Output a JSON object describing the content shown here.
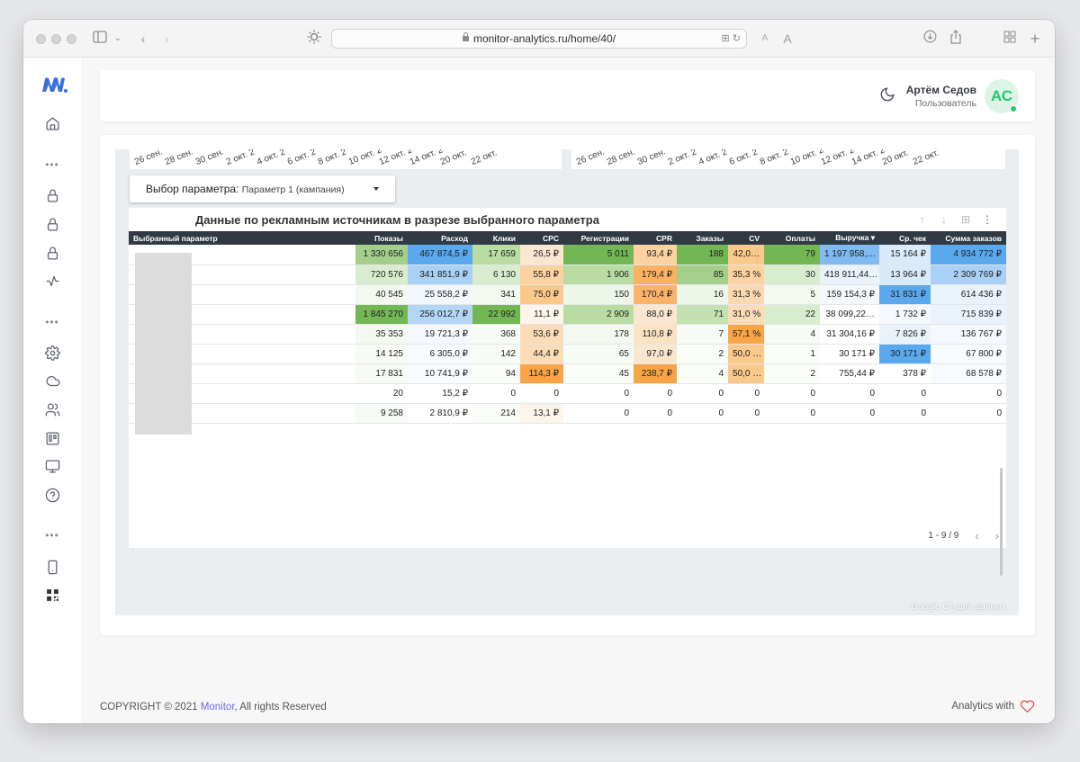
{
  "browser": {
    "url": "monitor-analytics.ru/home/40/"
  },
  "header": {
    "user_name": "Артём Седов",
    "user_role": "Пользователь",
    "avatar_initials": "АС"
  },
  "report": {
    "date_labels": [
      "26 сен.",
      "28 сен.",
      "30 сен.",
      "2 окт. 2",
      "4 окт. 2",
      "6 окт. 2",
      "8 окт. 2",
      "10 окт. 2",
      "12 окт. 2",
      "14 окт. 2",
      "20 окт.",
      "22 окт."
    ],
    "param_label": "Выбор параметра:",
    "param_value": "Параметр 1 (кампания)",
    "table_title": "Данные по рекламным источникам в разрезе выбранного параметра",
    "columns": [
      "Выбранный параметр",
      "Показы",
      "Расход",
      "Клики",
      "CPC",
      "Регистрации",
      "CPR",
      "Заказы",
      "CV",
      "Оплаты",
      "Выручка ▾",
      "Ср. чек",
      "Сумма заказов"
    ],
    "rows": [
      [
        "",
        "1 330 656",
        "467 874,5 ₽",
        "17 659",
        "26,5 ₽",
        "5 011",
        "93,4 ₽",
        "188",
        "42,0…",
        "79",
        "1 197 958,…",
        "15 164 ₽",
        "4 934 772 ₽"
      ],
      [
        "",
        "720 576",
        "341 851,9 ₽",
        "6 130",
        "55,8 ₽",
        "1 906",
        "179,4 ₽",
        "85",
        "35,3 %",
        "30",
        "418 911,44…",
        "13 964 ₽",
        "2 309 769 ₽"
      ],
      [
        "",
        "40 545",
        "25 558,2 ₽",
        "341",
        "75,0 ₽",
        "150",
        "170,4 ₽",
        "16",
        "31,3 %",
        "5",
        "159 154,3 ₽",
        "31 831 ₽",
        "614 436 ₽"
      ],
      [
        "",
        "1 845 270",
        "256 012,7 ₽",
        "22 992",
        "11,1 ₽",
        "2 909",
        "88,0 ₽",
        "71",
        "31,0 %",
        "22",
        "38 099,22…",
        "1 732 ₽",
        "715 839 ₽"
      ],
      [
        "",
        "35 353",
        "19 721,3 ₽",
        "368",
        "53,6 ₽",
        "178",
        "110,8 ₽",
        "7",
        "57,1 %",
        "4",
        "31 304,16 ₽",
        "7 826 ₽",
        "136 767 ₽"
      ],
      [
        "",
        "14 125",
        "6 305,0 ₽",
        "142",
        "44,4 ₽",
        "65",
        "97,0 ₽",
        "2",
        "50,0 …",
        "1",
        "30 171 ₽",
        "30 171 ₽",
        "67 800 ₽"
      ],
      [
        "",
        "17 831",
        "10 741,9 ₽",
        "94",
        "114,3 ₽",
        "45",
        "238,7 ₽",
        "4",
        "50,0 …",
        "2",
        "755,44 ₽",
        "378 ₽",
        "68 578 ₽"
      ],
      [
        "",
        "20",
        "15,2 ₽",
        "0",
        "0",
        "0",
        "0",
        "0",
        "0",
        "0",
        "0",
        "0",
        "0"
      ],
      [
        "",
        "9 258",
        "2 810,9 ₽",
        "214",
        "13,1 ₽",
        "0",
        "0",
        "0",
        "0",
        "0",
        "0",
        "0",
        "0"
      ]
    ],
    "cell_colors": [
      [
        "",
        "#a3cf8a",
        "#5aa8ee",
        "#b9dca3",
        "#fbe6cf",
        "#73b754",
        "#fbd2a0",
        "#73b754",
        "#fbc98c",
        "#73b754",
        "#7fbaf0",
        "#d9eafb",
        "#5aa8ee"
      ],
      [
        "",
        "#d8ecce",
        "#a9d0f5",
        "#d8ecce",
        "#fbd2a0",
        "#b9dca3",
        "#f9b25f",
        "#a3cf8a",
        "#fbd2a0",
        "#d8ecce",
        "#eaf3fc",
        "#d9eafb",
        "#a9d0f5"
      ],
      [
        "",
        "#f3f9f0",
        "#f1f7fd",
        "#f3f9f0",
        "#fbc98c",
        "#eef6ea",
        "#fbb36a",
        "#eef6ea",
        "#fbd9b0",
        "#f3f9f0",
        "#f5f9fd",
        "#5aa8ee",
        "#eaf3fc"
      ],
      [
        "",
        "#73b754",
        "#b3d6f6",
        "#73b754",
        "#fdf4ea",
        "#b9dca3",
        "#fbe6cf",
        "#c4e1b2",
        "#fbdcb6",
        "#d8ecce",
        "#ffffff",
        "#f5f9fd",
        "#eaf3fc"
      ],
      [
        "",
        "#f3f9f0",
        "#f5f9fd",
        "#f7fbf5",
        "#fbdcb6",
        "#f3f9f0",
        "#fbe2c3",
        "#f7fbf5",
        "#f9a545",
        "#f7fbf5",
        "#ffffff",
        "#eaf3fc",
        "#f5f9fd"
      ],
      [
        "",
        "#f7fbf5",
        "#f8fbfe",
        "#f7fbf5",
        "#fbdcb6",
        "#f7fbf5",
        "#fbe6cf",
        "#fafcf8",
        "#fbc98c",
        "#fafcf8",
        "#ffffff",
        "#5aa8ee",
        "#f8fbfe"
      ],
      [
        "",
        "#f7fbf5",
        "#f8fbfe",
        "#fafcf8",
        "#f9a545",
        "#fafcf8",
        "#f9a545",
        "#fafcf8",
        "#fbc98c",
        "#fafcf8",
        "#ffffff",
        "#ffffff",
        "#f8fbfe"
      ],
      [
        "",
        "#ffffff",
        "#ffffff",
        "#ffffff",
        "#ffffff",
        "#ffffff",
        "#ffffff",
        "#ffffff",
        "#ffffff",
        "#ffffff",
        "#ffffff",
        "#ffffff",
        "#ffffff"
      ],
      [
        "",
        "#f7fbf5",
        "#ffffff",
        "#fafcf8",
        "#fdf4ea",
        "#ffffff",
        "#ffffff",
        "#ffffff",
        "#ffffff",
        "#ffffff",
        "#ffffff",
        "#ffffff",
        "#ffffff"
      ]
    ],
    "pagination": "1 - 9 / 9",
    "watermark": "Google Студия данных"
  },
  "footer": {
    "copyright_prefix": "COPYRIGHT © 2021 ",
    "brand": "Monitor",
    "copyright_suffix": ", All rights Reserved",
    "analytics_with": "Analytics with"
  },
  "colors": {
    "accent": "#7367f0",
    "success": "#28c76f",
    "logo": "#3b6fe0"
  }
}
